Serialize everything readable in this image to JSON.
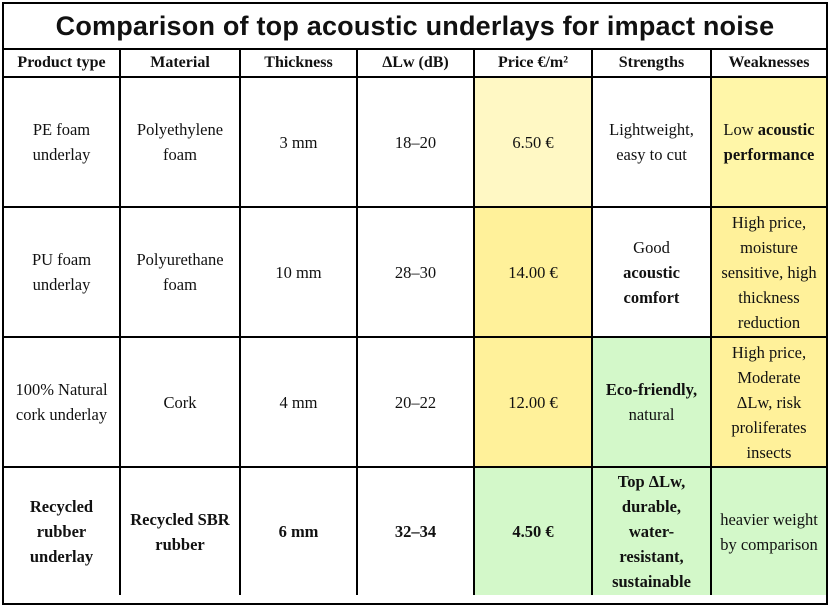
{
  "title": "Comparison of top acoustic underlays for impact noise",
  "headers": [
    "Product type",
    "Material",
    "Thickness",
    "ΔLw (dB)",
    "Price €/m²",
    "Strengths",
    "Weaknesses"
  ],
  "rows": [
    {
      "product": "PE foam underlay",
      "material": "Polyethylene foam",
      "thickness": "3 mm",
      "dlw": "18–20",
      "price": "6.50 €",
      "strengths": "Lightweight, easy to cut",
      "weak_a": "Low ",
      "weak_b": "acoustic performance"
    },
    {
      "product": "PU foam underlay",
      "material": "Polyurethane foam",
      "thickness": "10 mm",
      "dlw": "28–30",
      "price": "14.00 €",
      "strength_a": "Good",
      "strength_b": "acoustic comfort",
      "weaknesses": "High price, moisture sensitive, high thickness reduction"
    },
    {
      "product": "100% Natural cork underlay",
      "material": "Cork",
      "thickness": "4 mm",
      "dlw": "20–22",
      "price": "12.00 €",
      "strength_a": "Eco-friendly,",
      "strength_b": "natural",
      "weaknesses": "High price, Moderate ΔLw, risk proliferates insects"
    },
    {
      "product": "Recycled rubber underlay",
      "material": "Recycled SBR rubber",
      "thickness": "6 mm",
      "dlw": "32–34",
      "price": "4.50 €",
      "strengths": "Top ΔLw, durable, water-resistant, sustainable",
      "weaknesses": "heavier weight by comparison"
    }
  ],
  "colors": {
    "price_light_yellow": "#fff8c4",
    "price_yellow": "#fff19a",
    "green": "#d3f8c9",
    "border": "#000000"
  }
}
